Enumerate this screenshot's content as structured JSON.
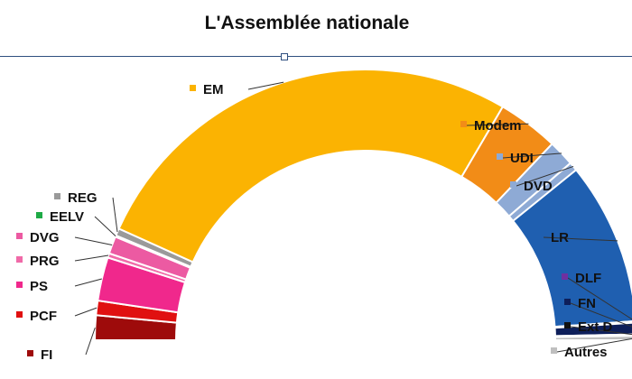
{
  "chart_data": {
    "type": "pie",
    "variant": "parliament-half-donut",
    "title": "L'Assemblée nationale",
    "legend_placement": "labels beside slices",
    "series": [
      {
        "name": "FI",
        "value": 17,
        "color": "#9e0b0b"
      },
      {
        "name": "PCF",
        "value": 10,
        "color": "#e01010"
      },
      {
        "name": "PS",
        "value": 30,
        "color": "#f0288c"
      },
      {
        "name": "PRG",
        "value": 3,
        "color": "#f06aa8"
      },
      {
        "name": "DVG",
        "value": 12,
        "color": "#ec5aa2"
      },
      {
        "name": "EELV",
        "value": 1,
        "color": "#1eaa46"
      },
      {
        "name": "REG",
        "value": 5,
        "color": "#9a9a9a"
      },
      {
        "name": "EM",
        "value": 308,
        "color": "#fbb302"
      },
      {
        "name": "Modem",
        "value": 42,
        "color": "#f28c17"
      },
      {
        "name": "UDI",
        "value": 18,
        "color": "#8eaad5"
      },
      {
        "name": "DVD",
        "value": 6,
        "color": "#8eaad5"
      },
      {
        "name": "LR",
        "value": 112,
        "color": "#1f5fb0"
      },
      {
        "name": "DLF",
        "value": 1,
        "color": "#7030a0"
      },
      {
        "name": "FN",
        "value": 8,
        "color": "#0e1f5a"
      },
      {
        "name": "Ext D",
        "value": 1,
        "color": "#111111"
      },
      {
        "name": "Autres",
        "value": 3,
        "color": "#bfbfbf"
      }
    ]
  }
}
